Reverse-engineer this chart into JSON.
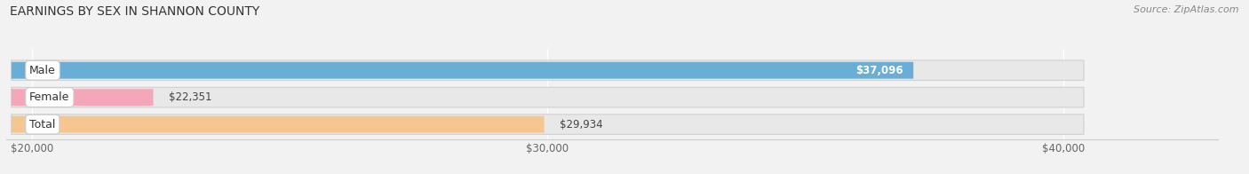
{
  "title": "EARNINGS BY SEX IN SHANNON COUNTY",
  "source": "Source: ZipAtlas.com",
  "categories": [
    "Male",
    "Female",
    "Total"
  ],
  "values": [
    37096,
    22351,
    29934
  ],
  "labels": [
    "$37,096",
    "$22,351",
    "$29,934"
  ],
  "bar_colors": [
    "#6aaed6",
    "#f4a7b9",
    "#f5c690"
  ],
  "xlim_min": 20000,
  "xlim_max": 43000,
  "data_max": 40000,
  "xticks": [
    20000,
    30000,
    40000
  ],
  "xtick_labels": [
    "$20,000",
    "$30,000",
    "$40,000"
  ],
  "bg_color": "#f2f2f2",
  "bar_bg_color": "#e8e8e8",
  "figsize": [
    14.06,
    1.96
  ],
  "dpi": 100
}
